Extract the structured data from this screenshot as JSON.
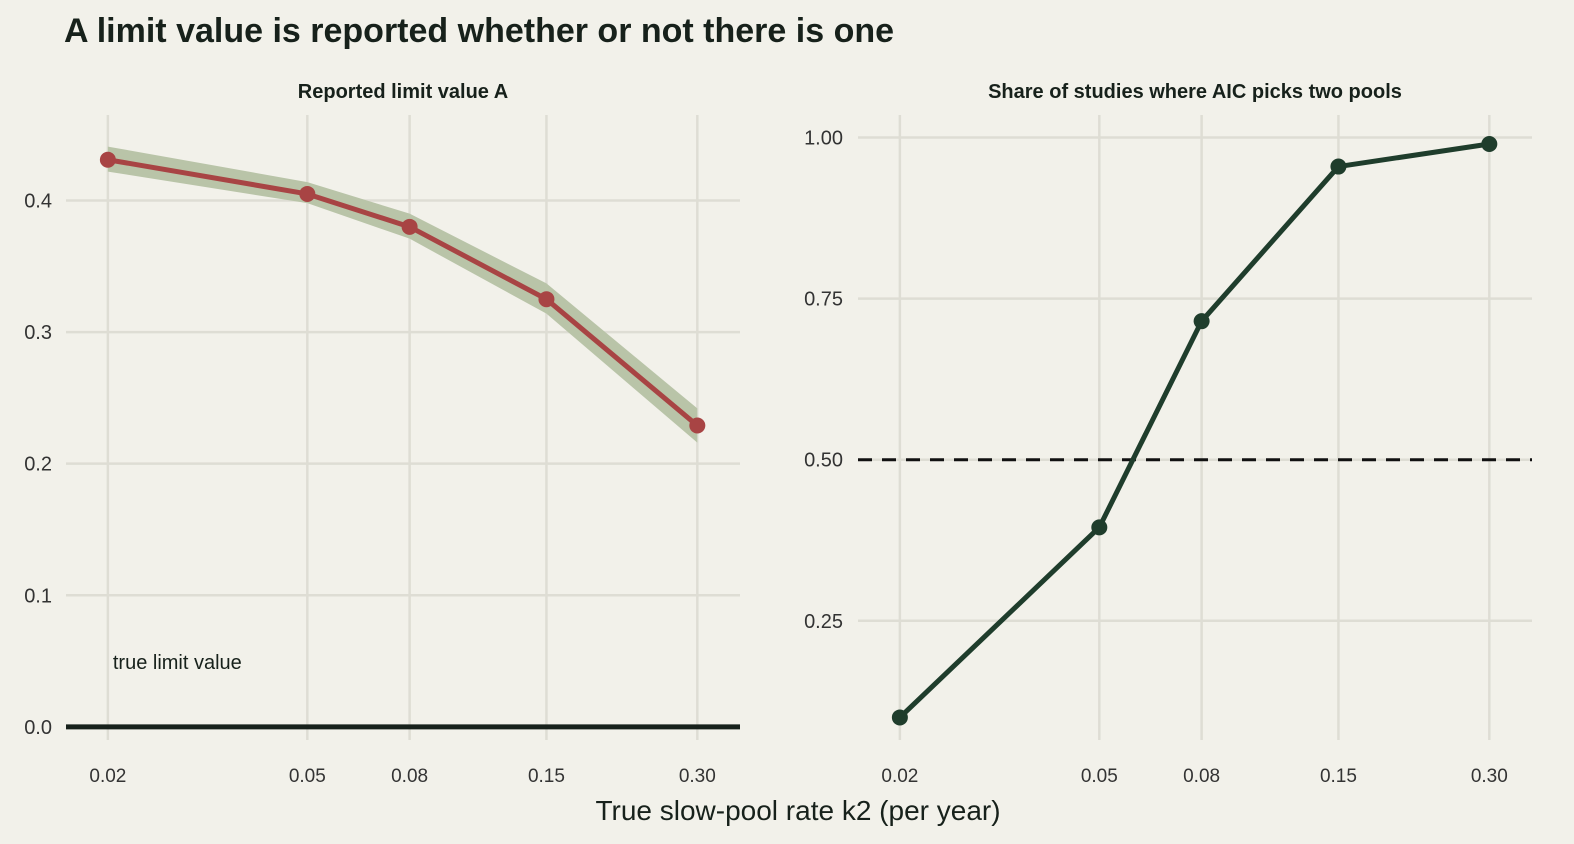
{
  "title": "A limit value is reported whether or not there is one",
  "xlabel": "True slow-pool rate k2 (per year)",
  "colors": {
    "background": "#f2f1ea",
    "grid": "#deddd4",
    "line_left": "#a84444",
    "ribbon_left": "#b9c4a8",
    "line_right": "#1f3d2c",
    "zero_line": "#17211b"
  },
  "chart_data": [
    {
      "type": "line",
      "subtitle": "Reported limit value A",
      "x_scale": "log",
      "x": [
        0.02,
        0.05,
        0.08,
        0.15,
        0.3
      ],
      "x_tick_labels": [
        "0.02",
        "0.05",
        "0.08",
        "0.15",
        "0.30"
      ],
      "y_ticks": [
        0.0,
        0.1,
        0.2,
        0.3,
        0.4
      ],
      "y_tick_labels": [
        "0.0",
        "0.1",
        "0.2",
        "0.3",
        "0.4"
      ],
      "ylim": [
        -0.01,
        0.465
      ],
      "series": [
        {
          "values": [
            0.431,
            0.405,
            0.38,
            0.325,
            0.229
          ],
          "ribbon_low": [
            0.422,
            0.398,
            0.371,
            0.314,
            0.216
          ],
          "ribbon_high": [
            0.441,
            0.414,
            0.39,
            0.337,
            0.242
          ]
        }
      ],
      "reference_line": {
        "y": 0.0
      },
      "annotation": {
        "text": "true limit value",
        "x": 0.02,
        "y": 0.05
      }
    },
    {
      "type": "line",
      "subtitle": "Share of studies where AIC picks two pools",
      "x_scale": "log",
      "x": [
        0.02,
        0.05,
        0.08,
        0.15,
        0.3
      ],
      "x_tick_labels": [
        "0.02",
        "0.05",
        "0.08",
        "0.15",
        "0.30"
      ],
      "y_ticks": [
        0.25,
        0.5,
        0.75,
        1.0
      ],
      "y_tick_labels": [
        "0.25",
        "0.50",
        "0.75",
        "1.00"
      ],
      "ylim": [
        0.065,
        1.035
      ],
      "series": [
        {
          "values": [
            0.1,
            0.395,
            0.715,
            0.955,
            0.99
          ]
        }
      ],
      "reference_line": {
        "y": 0.5,
        "style": "dashed"
      }
    }
  ]
}
